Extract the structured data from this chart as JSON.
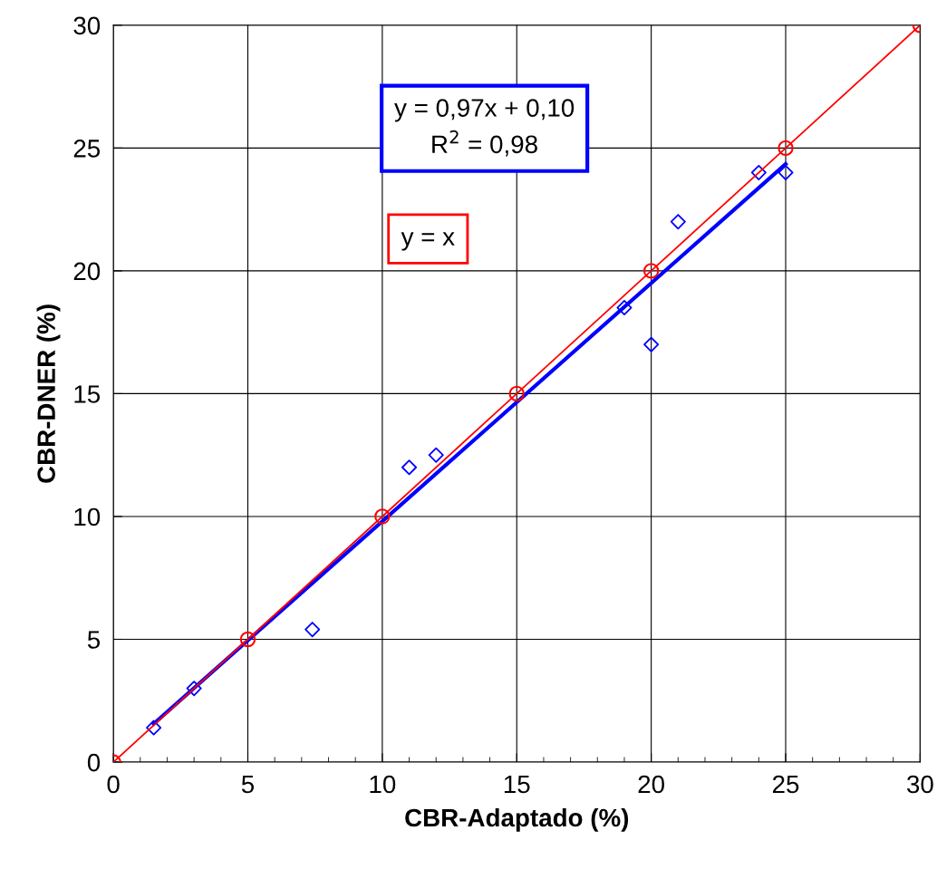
{
  "chart_data": {
    "type": "scatter",
    "xlabel": "CBR-Adaptado (%)",
    "ylabel": "CBR-DNER (%)",
    "xlim": [
      0,
      30
    ],
    "ylim": [
      0,
      30
    ],
    "xticks": [
      0,
      5,
      10,
      15,
      20,
      25,
      30
    ],
    "yticks": [
      0,
      5,
      10,
      15,
      20,
      25,
      30
    ],
    "grid": true,
    "annotations": [
      "y = 0,97x + 0,10\nR$^{2}$ = 0,98",
      "y = x"
    ],
    "series": [
      {
        "marker": "diamond",
        "color": "#0000ff",
        "x": [
          1.5,
          3,
          7.4,
          11,
          12,
          19,
          20,
          21,
          24,
          25
        ],
        "values": [
          1.4,
          3,
          5.4,
          12,
          12.5,
          18.5,
          17,
          22,
          24,
          24
        ]
      },
      {
        "type": "line",
        "marker": "none",
        "color": "#0000ff",
        "x": [
          1.5,
          25
        ],
        "values": [
          1.56,
          24.35
        ]
      },
      {
        "type": "line",
        "marker": "circle",
        "color": "#ff0000",
        "x": [
          0,
          5,
          10,
          15,
          20,
          25,
          30
        ],
        "values": [
          0,
          5,
          10,
          15,
          20,
          25,
          30
        ]
      }
    ]
  }
}
